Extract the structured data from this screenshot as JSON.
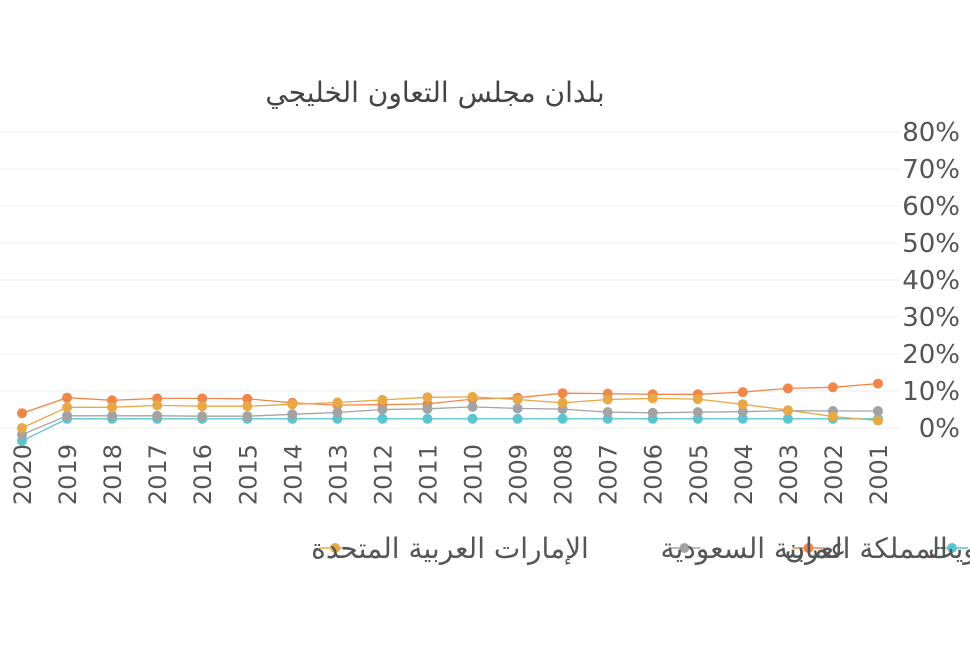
{
  "chart_data": {
    "type": "line",
    "title": "بلدان مجلس التعاون الخليجي",
    "xlabel": "",
    "ylabel": "",
    "ylim": [
      0,
      80
    ],
    "yticks": [
      0,
      10,
      20,
      30,
      40,
      50,
      60,
      70,
      80
    ],
    "ytick_suffix": "%",
    "x_reversed": true,
    "grid": true,
    "legend_position": "bottom",
    "categories": [
      "2001",
      "2002",
      "2003",
      "2004",
      "2005",
      "2006",
      "2007",
      "2008",
      "2009",
      "2010",
      "2011",
      "2012",
      "2013",
      "2014",
      "2015",
      "2016",
      "2017",
      "2018",
      "2019",
      "2020"
    ],
    "series": [
      {
        "name": "الكويت",
        "color": "#5bc4d1",
        "values": [
          2.5,
          2.5,
          2.5,
          2.5,
          2.5,
          2.5,
          2.5,
          2.5,
          2.5,
          2.5,
          2.5,
          2.5,
          2.5,
          2.5,
          2.5,
          2.5,
          2.5,
          2.5,
          2.5,
          -3.5
        ]
      },
      {
        "name": "عمان",
        "color": "#f0874a",
        "values": [
          12,
          11,
          10.7,
          9.7,
          9.1,
          9.1,
          9.3,
          9.4,
          8.2,
          7.8,
          6.5,
          6.3,
          6.2,
          6.8,
          7.9,
          8.0,
          8.0,
          7.5,
          8.2,
          4.0
        ]
      },
      {
        "name": "المملكة العربية السعودية",
        "color": "#a3a3a3",
        "values": [
          4.6,
          4.6,
          4.7,
          4.4,
          4.3,
          4.1,
          4.3,
          5.1,
          5.3,
          5.7,
          5.2,
          5.0,
          4.2,
          3.7,
          3.2,
          3.2,
          3.3,
          3.3,
          3.3,
          -1.8
        ]
      },
      {
        "name": "الإمارات العربية المتحدة",
        "color": "#e8a846",
        "values": [
          2.0,
          3.1,
          4.8,
          6.4,
          7.8,
          8.0,
          7.7,
          6.8,
          7.7,
          8.4,
          8.3,
          7.6,
          6.9,
          6.4,
          5.9,
          5.9,
          6.1,
          5.6,
          5.6,
          0.0
        ]
      }
    ]
  }
}
